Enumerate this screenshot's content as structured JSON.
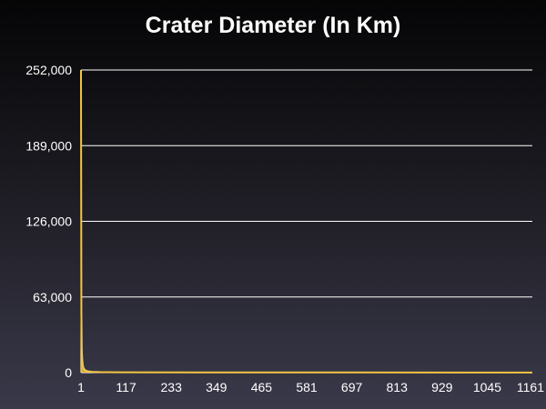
{
  "chart_data": {
    "type": "area",
    "title": "Crater Diameter (In Km)",
    "xlabel": "",
    "ylabel": "",
    "x_ticks": [
      "1",
      "117",
      "233",
      "349",
      "465",
      "581",
      "697",
      "813",
      "929",
      "1045",
      "1161"
    ],
    "y_ticks": [
      "0",
      "63,000",
      "126,000",
      "189,000",
      "252,000"
    ],
    "xlim": [
      1,
      1161
    ],
    "ylim": [
      0,
      252000
    ],
    "grid": true,
    "legend": "none",
    "series": [
      {
        "color": "#f5c542",
        "x": [
          1,
          2,
          3,
          4,
          5,
          6,
          8,
          10,
          13,
          16,
          20,
          30,
          50,
          100,
          300,
          600,
          1000,
          1161
        ],
        "values": [
          252000,
          50000,
          20000,
          12000,
          8000,
          5500,
          3500,
          2500,
          1800,
          1300,
          1000,
          700,
          450,
          300,
          200,
          150,
          120,
          100
        ]
      }
    ]
  }
}
